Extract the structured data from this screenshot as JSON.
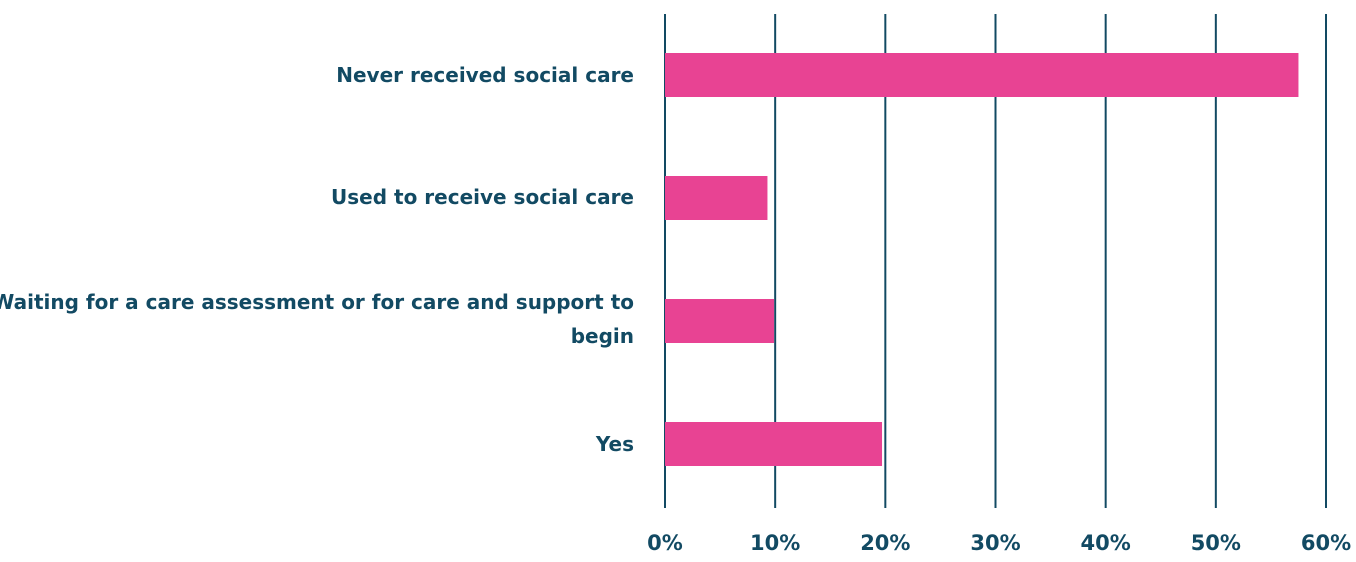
{
  "colors": {
    "bar": "#e84393",
    "axis": "#124a63",
    "text": "#124a63"
  },
  "chart_data": {
    "type": "bar",
    "orientation": "horizontal",
    "title": "",
    "xlabel": "",
    "ylabel": "",
    "categories": [
      "Never received social care",
      "Used to receive social care",
      "Waiting for a care assessment or for care and support to begin",
      "Yes"
    ],
    "values": [
      57.5,
      9.3,
      9.9,
      19.7
    ],
    "xlim": [
      0,
      60
    ],
    "ticks": [
      0,
      10,
      20,
      30,
      40,
      50,
      60
    ],
    "tick_labels": [
      "0%",
      "10%",
      "20%",
      "30%",
      "40%",
      "50%",
      "60%"
    ],
    "grid": true,
    "legend": "none"
  }
}
